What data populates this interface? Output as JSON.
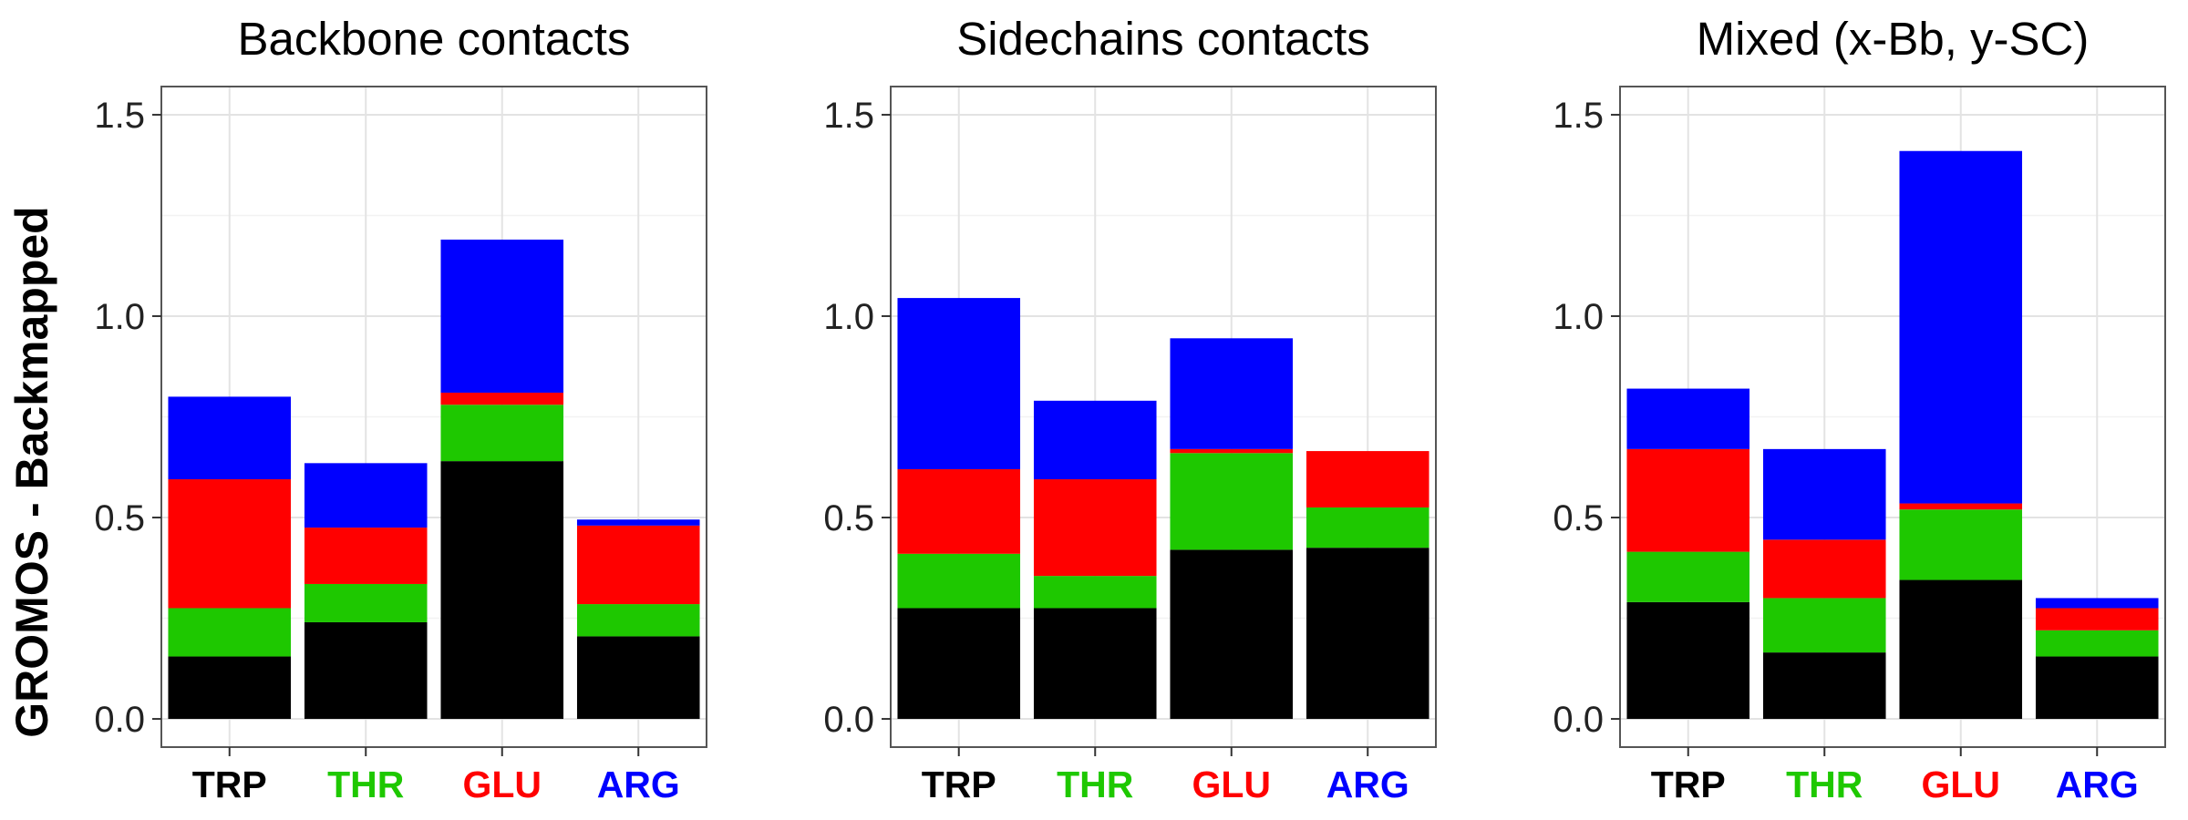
{
  "ylabel": "GROMOS - Backmapped",
  "chart_data": [
    {
      "type": "bar",
      "stacked": true,
      "title": "Backbone contacts",
      "categories": [
        "TRP",
        "THR",
        "GLU",
        "ARG"
      ],
      "category_colors": [
        "#000000",
        "#1ec800",
        "#ff0000",
        "#0000ff"
      ],
      "ylim": [
        -0.07,
        1.57
      ],
      "yticks": [
        0.0,
        0.5,
        1.0,
        1.5
      ],
      "ytick_labels": [
        "0.0",
        "0.5",
        "1.0",
        "1.5"
      ],
      "grid": true,
      "series": [
        {
          "color": "#000000",
          "values": [
            0.155,
            0.24,
            0.64,
            0.205
          ]
        },
        {
          "color": "#1ec800",
          "values": [
            0.12,
            0.095,
            0.14,
            0.08
          ]
        },
        {
          "color": "#ff0000",
          "values": [
            0.32,
            0.14,
            0.03,
            0.195
          ]
        },
        {
          "color": "#0000ff",
          "values": [
            0.205,
            0.16,
            0.38,
            0.015
          ]
        }
      ]
    },
    {
      "type": "bar",
      "stacked": true,
      "title": "Sidechains contacts",
      "categories": [
        "TRP",
        "THR",
        "GLU",
        "ARG"
      ],
      "category_colors": [
        "#000000",
        "#1ec800",
        "#ff0000",
        "#0000ff"
      ],
      "ylim": [
        -0.07,
        1.57
      ],
      "yticks": [
        0.0,
        0.5,
        1.0,
        1.5
      ],
      "ytick_labels": [
        "0.0",
        "0.5",
        "1.0",
        "1.5"
      ],
      "grid": true,
      "series": [
        {
          "color": "#000000",
          "values": [
            0.275,
            0.275,
            0.42,
            0.425
          ]
        },
        {
          "color": "#1ec800",
          "values": [
            0.135,
            0.08,
            0.24,
            0.1
          ]
        },
        {
          "color": "#ff0000",
          "values": [
            0.21,
            0.24,
            0.01,
            0.14
          ]
        },
        {
          "color": "#0000ff",
          "values": [
            0.425,
            0.195,
            0.275,
            0.0
          ]
        }
      ]
    },
    {
      "type": "bar",
      "stacked": true,
      "title": "Mixed (x-Bb, y-SC)",
      "categories": [
        "TRP",
        "THR",
        "GLU",
        "ARG"
      ],
      "category_colors": [
        "#000000",
        "#1ec800",
        "#ff0000",
        "#0000ff"
      ],
      "ylim": [
        -0.07,
        1.57
      ],
      "yticks": [
        0.0,
        0.5,
        1.0,
        1.5
      ],
      "ytick_labels": [
        "0.0",
        "0.5",
        "1.0",
        "1.5"
      ],
      "grid": true,
      "series": [
        {
          "color": "#000000",
          "values": [
            0.29,
            0.165,
            0.345,
            0.155
          ]
        },
        {
          "color": "#1ec800",
          "values": [
            0.125,
            0.135,
            0.175,
            0.065
          ]
        },
        {
          "color": "#ff0000",
          "values": [
            0.255,
            0.145,
            0.015,
            0.055
          ]
        },
        {
          "color": "#0000ff",
          "values": [
            0.15,
            0.225,
            0.875,
            0.025
          ]
        }
      ]
    }
  ]
}
